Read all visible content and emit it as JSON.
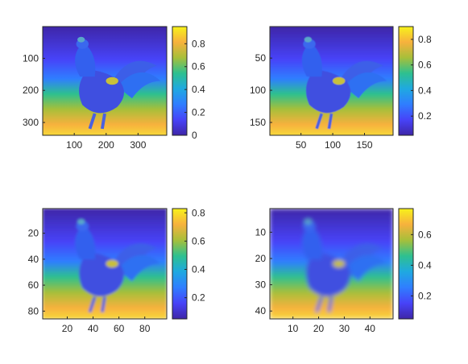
{
  "colormap": [
    "#3e26a8",
    "#4743f8",
    "#2f7eff",
    "#1fa9e0",
    "#2ec08f",
    "#a7bf3a",
    "#f7b13d",
    "#f7f21a"
  ],
  "chart_data": [
    {
      "type": "heatmap",
      "subject": "rooster image, grayscale intensity",
      "xlim": [
        1,
        390
      ],
      "ylim": [
        1,
        340
      ],
      "xticks": [
        100,
        200,
        300
      ],
      "xtick_labels": [
        "100",
        "200",
        "300"
      ],
      "yticks": [
        100,
        200,
        300
      ],
      "ytick_labels": [
        "100",
        "200",
        "300"
      ],
      "y_reversed": true,
      "colorbar": {
        "range": [
          0,
          0.95
        ],
        "ticks": [
          0,
          0.2,
          0.4,
          0.6,
          0.8
        ],
        "labels": [
          "0",
          "0.2",
          "0.4",
          "0.6",
          "0.8"
        ]
      },
      "blur": 0.0
    },
    {
      "type": "heatmap",
      "subject": "rooster image, grayscale intensity (downsampled x2)",
      "xlim": [
        1,
        195
      ],
      "ylim": [
        1,
        170
      ],
      "xticks": [
        50,
        100,
        150
      ],
      "xtick_labels": [
        "50",
        "100",
        "150"
      ],
      "yticks": [
        50,
        100,
        150
      ],
      "ytick_labels": [
        "50",
        "100",
        "150"
      ],
      "y_reversed": true,
      "colorbar": {
        "range": [
          0.05,
          0.9
        ],
        "ticks": [
          0.2,
          0.4,
          0.6,
          0.8
        ],
        "labels": [
          "0.2",
          "0.4",
          "0.6",
          "0.8"
        ]
      },
      "blur": 0.3
    },
    {
      "type": "heatmap",
      "subject": "rooster image, grayscale intensity (downsampled x4)",
      "xlim": [
        1,
        97
      ],
      "ylim": [
        1,
        86
      ],
      "xticks": [
        20,
        40,
        60,
        80
      ],
      "xtick_labels": [
        "20",
        "40",
        "60",
        "80"
      ],
      "yticks": [
        20,
        40,
        60,
        80
      ],
      "ytick_labels": [
        "20",
        "40",
        "60",
        "80"
      ],
      "y_reversed": true,
      "colorbar": {
        "range": [
          0.05,
          0.83
        ],
        "ticks": [
          0.2,
          0.4,
          0.6,
          0.8
        ],
        "labels": [
          "0.2",
          "0.4",
          "0.6",
          "0.8"
        ]
      },
      "blur": 1.0
    },
    {
      "type": "heatmap",
      "subject": "rooster image, grayscale intensity (downsampled x8)",
      "xlim": [
        1,
        49
      ],
      "ylim": [
        1,
        43
      ],
      "xticks": [
        10,
        20,
        30,
        40
      ],
      "xtick_labels": [
        "10",
        "20",
        "30",
        "40"
      ],
      "yticks": [
        10,
        20,
        30,
        40
      ],
      "ytick_labels": [
        "10",
        "20",
        "30",
        "40"
      ],
      "y_reversed": true,
      "colorbar": {
        "range": [
          0.05,
          0.77
        ],
        "ticks": [
          0.2,
          0.4,
          0.6
        ],
        "labels": [
          "0.2",
          "0.4",
          "0.6"
        ]
      },
      "blur": 1.8
    }
  ]
}
